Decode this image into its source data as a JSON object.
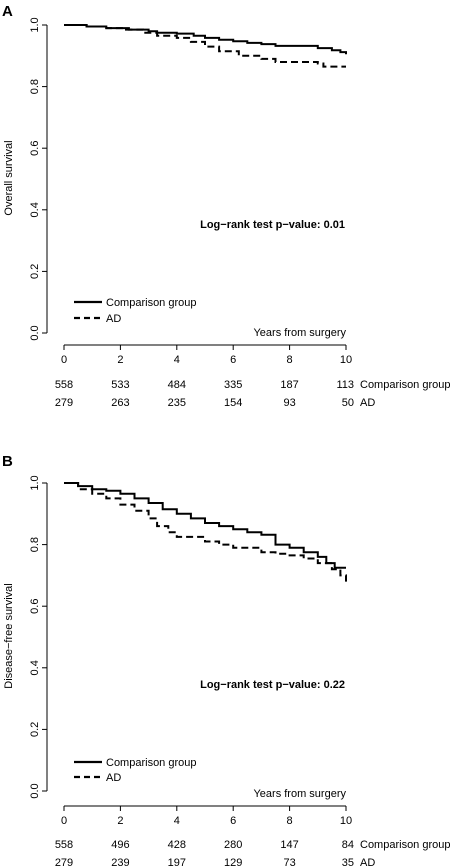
{
  "chart_data": [
    {
      "type": "line",
      "panel_label": "A",
      "ylabel": "Overall survival",
      "xlabel": "Years from surgery",
      "xlim": [
        0,
        10
      ],
      "ylim": [
        0,
        1
      ],
      "x_ticks": [
        "0",
        "2",
        "4",
        "6",
        "8",
        "10"
      ],
      "y_ticks": [
        "0.0",
        "0.2",
        "0.4",
        "0.6",
        "0.8",
        "1.0"
      ],
      "annotation": "Log−rank test p−value: 0.01",
      "legend": [
        "Comparison group",
        "AD"
      ],
      "series": [
        {
          "name": "Comparison group",
          "style": "solid",
          "points": [
            [
              0,
              1.0
            ],
            [
              0.8,
              0.995
            ],
            [
              1.5,
              0.99
            ],
            [
              2.3,
              0.985
            ],
            [
              3.0,
              0.98
            ],
            [
              3.3,
              0.975
            ],
            [
              4.0,
              0.972
            ],
            [
              4.6,
              0.965
            ],
            [
              5.0,
              0.958
            ],
            [
              5.5,
              0.952
            ],
            [
              6.0,
              0.947
            ],
            [
              6.5,
              0.942
            ],
            [
              7.0,
              0.938
            ],
            [
              7.5,
              0.932
            ],
            [
              8.5,
              0.932
            ],
            [
              9.0,
              0.925
            ],
            [
              9.5,
              0.918
            ],
            [
              9.8,
              0.912
            ],
            [
              10.0,
              0.905
            ]
          ]
        },
        {
          "name": "AD",
          "style": "dashed",
          "points": [
            [
              0,
              1.0
            ],
            [
              0.8,
              0.995
            ],
            [
              1.5,
              0.99
            ],
            [
              2.2,
              0.985
            ],
            [
              2.8,
              0.975
            ],
            [
              3.3,
              0.965
            ],
            [
              4.0,
              0.958
            ],
            [
              4.5,
              0.945
            ],
            [
              5.0,
              0.93
            ],
            [
              5.5,
              0.915
            ],
            [
              6.2,
              0.9
            ],
            [
              7.0,
              0.89
            ],
            [
              7.5,
              0.88
            ],
            [
              8.5,
              0.88
            ],
            [
              9.0,
              0.875
            ],
            [
              9.2,
              0.865
            ],
            [
              10.0,
              0.865
            ]
          ]
        }
      ],
      "risk_table": {
        "rows": [
          {
            "label": "Comparison group",
            "values": [
              "558",
              "533",
              "484",
              "335",
              "187",
              "113"
            ]
          },
          {
            "label": "AD",
            "values": [
              "279",
              "263",
              "235",
              "154",
              "93",
              "50"
            ]
          }
        ]
      }
    },
    {
      "type": "line",
      "panel_label": "B",
      "ylabel": "Disease−free survival",
      "xlabel": "Years from surgery",
      "xlim": [
        0,
        10
      ],
      "ylim": [
        0,
        1
      ],
      "x_ticks": [
        "0",
        "2",
        "4",
        "6",
        "8",
        "10"
      ],
      "y_ticks": [
        "0.0",
        "0.2",
        "0.4",
        "0.6",
        "0.8",
        "1.0"
      ],
      "annotation": "Log−rank test p−value: 0.22",
      "legend": [
        "Comparison group",
        "AD"
      ],
      "series": [
        {
          "name": "Comparison group",
          "style": "solid",
          "points": [
            [
              0,
              1.0
            ],
            [
              0.5,
              0.99
            ],
            [
              1.0,
              0.98
            ],
            [
              1.5,
              0.975
            ],
            [
              2.0,
              0.965
            ],
            [
              2.5,
              0.95
            ],
            [
              3.0,
              0.935
            ],
            [
              3.5,
              0.915
            ],
            [
              4.0,
              0.9
            ],
            [
              4.5,
              0.885
            ],
            [
              5.0,
              0.87
            ],
            [
              5.5,
              0.86
            ],
            [
              6.0,
              0.85
            ],
            [
              6.5,
              0.84
            ],
            [
              7.0,
              0.832
            ],
            [
              7.5,
              0.8
            ],
            [
              8.0,
              0.79
            ],
            [
              8.5,
              0.775
            ],
            [
              9.0,
              0.76
            ],
            [
              9.3,
              0.74
            ],
            [
              9.6,
              0.725
            ],
            [
              10.0,
              0.725
            ]
          ]
        },
        {
          "name": "AD",
          "style": "dashed",
          "points": [
            [
              0,
              1.0
            ],
            [
              0.5,
              0.98
            ],
            [
              1.0,
              0.965
            ],
            [
              1.5,
              0.95
            ],
            [
              2.0,
              0.93
            ],
            [
              2.5,
              0.91
            ],
            [
              3.0,
              0.885
            ],
            [
              3.3,
              0.86
            ],
            [
              3.7,
              0.84
            ],
            [
              4.0,
              0.825
            ],
            [
              5.0,
              0.81
            ],
            [
              5.5,
              0.8
            ],
            [
              6.0,
              0.79
            ],
            [
              7.0,
              0.775
            ],
            [
              7.5,
              0.77
            ],
            [
              8.0,
              0.765
            ],
            [
              8.5,
              0.755
            ],
            [
              9.0,
              0.74
            ],
            [
              9.5,
              0.72
            ],
            [
              9.8,
              0.7
            ],
            [
              10.0,
              0.68
            ]
          ]
        }
      ],
      "risk_table": {
        "rows": [
          {
            "label": "Comparison group",
            "values": [
              "558",
              "496",
              "428",
              "280",
              "147",
              "84"
            ]
          },
          {
            "label": "AD",
            "values": [
              "279",
              "239",
              "197",
              "129",
              "73",
              "35"
            ]
          }
        ]
      }
    }
  ]
}
